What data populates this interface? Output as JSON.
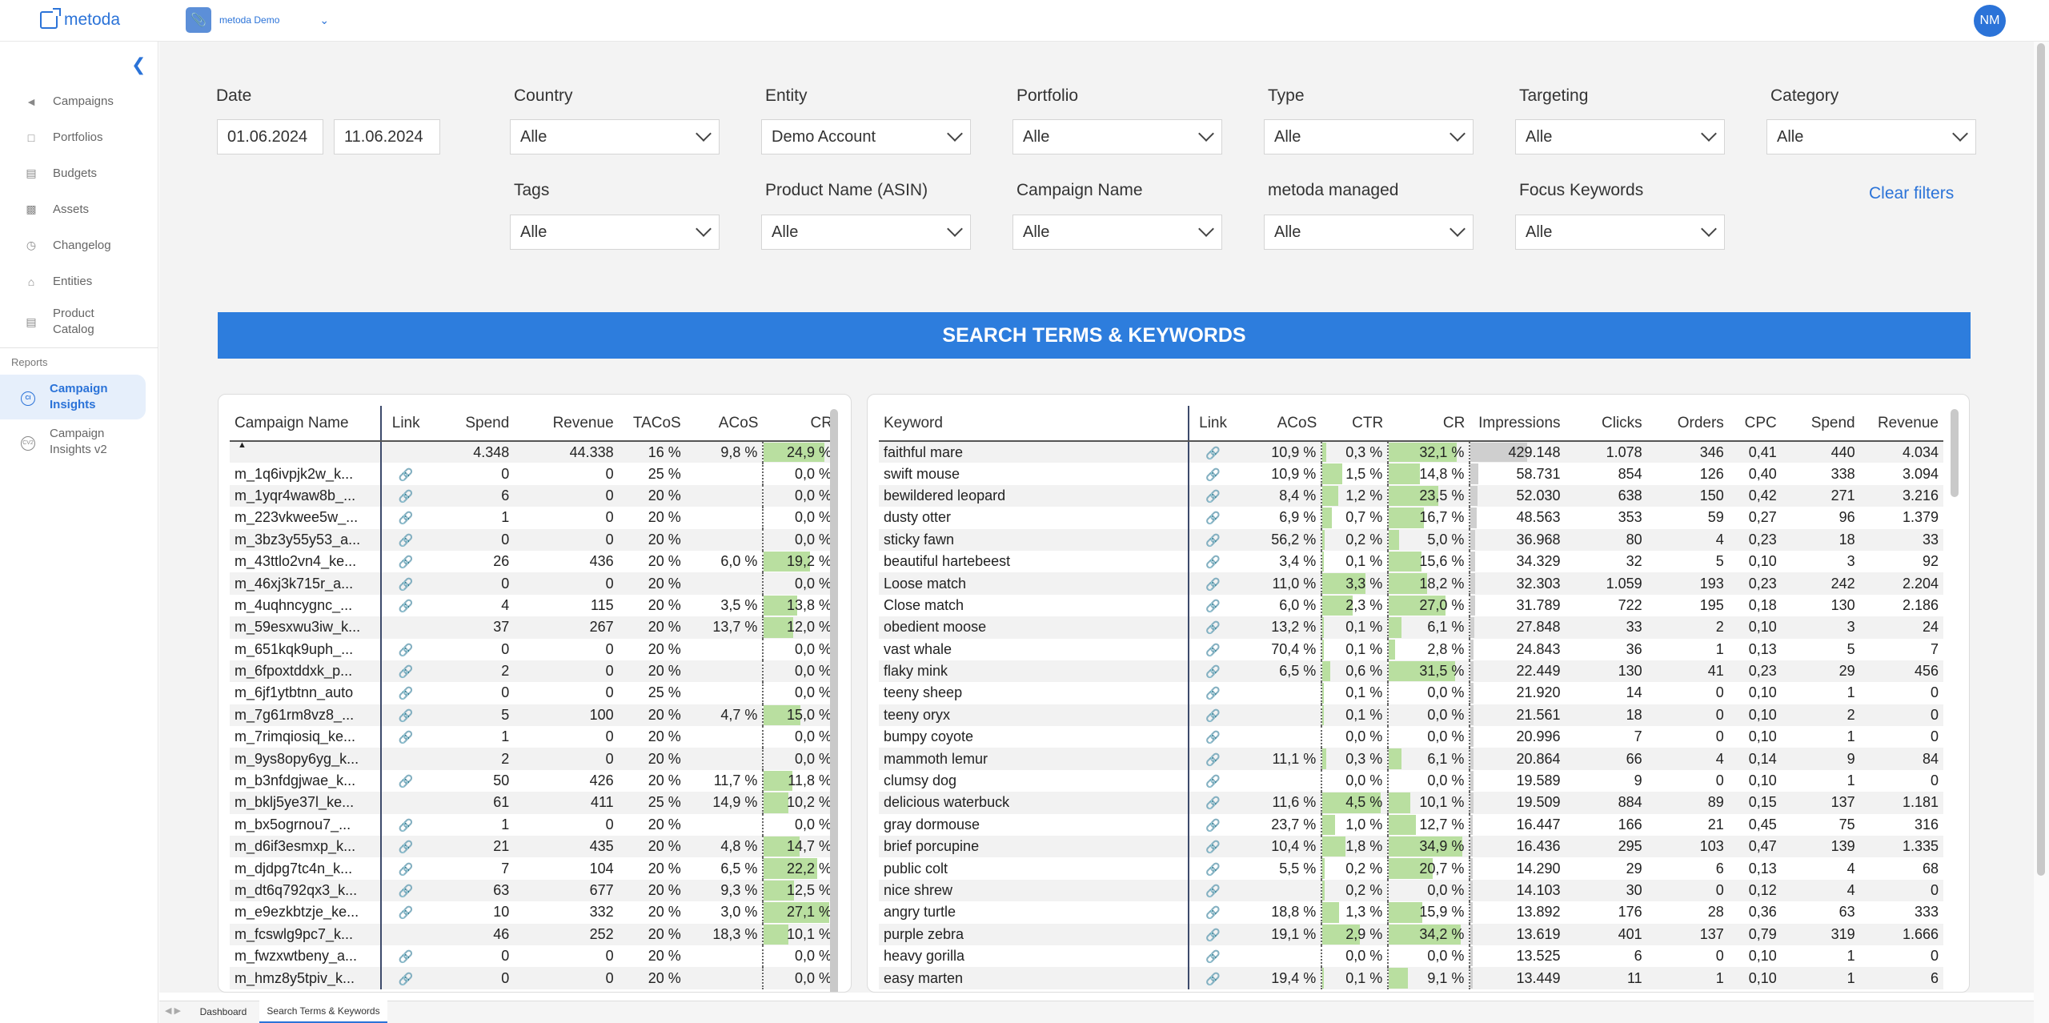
{
  "app": {
    "logo_text": "metoda",
    "account_name": "metoda Demo",
    "avatar_initials": "NM",
    "accent": "#2b73d8"
  },
  "sidebar": {
    "items": [
      {
        "label": "Campaigns",
        "icon": "megaphone-icon"
      },
      {
        "label": "Portfolios",
        "icon": "folder-icon"
      },
      {
        "label": "Budgets",
        "icon": "wallet-icon"
      },
      {
        "label": "Assets",
        "icon": "image-icon"
      },
      {
        "label": "Changelog",
        "icon": "clock-icon"
      },
      {
        "label": "Entities",
        "icon": "bank-icon"
      },
      {
        "label": "Product Catalog",
        "icon": "book-icon"
      }
    ],
    "section": "Reports",
    "reports": [
      {
        "label": "Campaign Insights",
        "icon": "ci-circle-icon",
        "active": true
      },
      {
        "label": "Campaign Insights v2",
        "icon": "cv2-circle-icon",
        "active": false
      }
    ]
  },
  "filters": {
    "date_label": "Date",
    "date_from": "01.06.2024",
    "date_to": "11.06.2024",
    "country": {
      "label": "Country",
      "value": "Alle"
    },
    "entity": {
      "label": "Entity",
      "value": "Demo Account"
    },
    "portfolio": {
      "label": "Portfolio",
      "value": "Alle"
    },
    "type": {
      "label": "Type",
      "value": "Alle"
    },
    "targeting": {
      "label": "Targeting",
      "value": "Alle"
    },
    "category": {
      "label": "Category",
      "value": "Alle"
    },
    "tags": {
      "label": "Tags",
      "value": "Alle"
    },
    "product_name": {
      "label": "Product Name (ASIN)",
      "value": "Alle"
    },
    "campaign_name": {
      "label": "Campaign Name",
      "value": "Alle"
    },
    "metoda_managed": {
      "label": "metoda managed",
      "value": "Alle"
    },
    "focus_keywords": {
      "label": "Focus Keywords",
      "value": "Alle"
    },
    "clear_label": "Clear filters"
  },
  "banner_title": "SEARCH TERMS & KEYWORDS",
  "campaign_table": {
    "columns": [
      "Campaign Name",
      "Link",
      "Spend",
      "Revenue",
      "TACoS",
      "ACoS",
      "CR"
    ],
    "total": {
      "name": "",
      "spend": "4.348",
      "revenue": "44.338",
      "tacos": "16 %",
      "acos": "9,8 %",
      "cr": "24,9 %",
      "cr_val": 24.9
    },
    "rows": [
      {
        "name": "m_1q6ivpjk2w_k...",
        "link": true,
        "spend": "0",
        "revenue": "0",
        "tacos": "25 %",
        "acos": "",
        "cr": "0,0 %",
        "cr_val": 0
      },
      {
        "name": "m_1yqr4waw8b_...",
        "link": true,
        "spend": "6",
        "revenue": "0",
        "tacos": "20 %",
        "acos": "",
        "cr": "0,0 %",
        "cr_val": 0
      },
      {
        "name": "m_223vkwee5w_...",
        "link": true,
        "spend": "1",
        "revenue": "0",
        "tacos": "20 %",
        "acos": "",
        "cr": "0,0 %",
        "cr_val": 0
      },
      {
        "name": "m_3bz3y55y53_a...",
        "link": true,
        "spend": "0",
        "revenue": "0",
        "tacos": "20 %",
        "acos": "",
        "cr": "0,0 %",
        "cr_val": 0
      },
      {
        "name": "m_43ttlo2vn4_ke...",
        "link": true,
        "spend": "26",
        "revenue": "436",
        "tacos": "20 %",
        "acos": "6,0 %",
        "cr": "19,2 %",
        "cr_val": 19.2
      },
      {
        "name": "m_46xj3k715r_a...",
        "link": true,
        "spend": "0",
        "revenue": "0",
        "tacos": "20 %",
        "acos": "",
        "cr": "0,0 %",
        "cr_val": 0
      },
      {
        "name": "m_4uqhncygnc_...",
        "link": true,
        "spend": "4",
        "revenue": "115",
        "tacos": "20 %",
        "acos": "3,5 %",
        "cr": "13,8 %",
        "cr_val": 13.8
      },
      {
        "name": "m_59esxwu3iw_k...",
        "link": false,
        "spend": "37",
        "revenue": "267",
        "tacos": "20 %",
        "acos": "13,7 %",
        "cr": "12,0 %",
        "cr_val": 12.0
      },
      {
        "name": "m_651kqk9uph_...",
        "link": true,
        "spend": "0",
        "revenue": "0",
        "tacos": "20 %",
        "acos": "",
        "cr": "0,0 %",
        "cr_val": 0
      },
      {
        "name": "m_6fpoxtddxk_p...",
        "link": true,
        "spend": "2",
        "revenue": "0",
        "tacos": "20 %",
        "acos": "",
        "cr": "0,0 %",
        "cr_val": 0
      },
      {
        "name": "m_6jf1ytbtnn_auto",
        "link": true,
        "spend": "0",
        "revenue": "0",
        "tacos": "25 %",
        "acos": "",
        "cr": "0,0 %",
        "cr_val": 0
      },
      {
        "name": "m_7g61rm8vz8_...",
        "link": true,
        "spend": "5",
        "revenue": "100",
        "tacos": "20 %",
        "acos": "4,7 %",
        "cr": "15,0 %",
        "cr_val": 15.0
      },
      {
        "name": "m_7rimqiosiq_ke...",
        "link": true,
        "spend": "1",
        "revenue": "0",
        "tacos": "20 %",
        "acos": "",
        "cr": "0,0 %",
        "cr_val": 0
      },
      {
        "name": "m_9ys8opy6yg_k...",
        "link": false,
        "spend": "2",
        "revenue": "0",
        "tacos": "20 %",
        "acos": "",
        "cr": "0,0 %",
        "cr_val": 0
      },
      {
        "name": "m_b3nfdgjwae_k...",
        "link": true,
        "spend": "50",
        "revenue": "426",
        "tacos": "20 %",
        "acos": "11,7 %",
        "cr": "11,8 %",
        "cr_val": 11.8
      },
      {
        "name": "m_bklj5ye37l_ke...",
        "link": false,
        "spend": "61",
        "revenue": "411",
        "tacos": "25 %",
        "acos": "14,9 %",
        "cr": "10,2 %",
        "cr_val": 10.2
      },
      {
        "name": "m_bx5ogrnou7_...",
        "link": true,
        "spend": "1",
        "revenue": "0",
        "tacos": "20 %",
        "acos": "",
        "cr": "0,0 %",
        "cr_val": 0
      },
      {
        "name": "m_d6if3esmxp_k...",
        "link": true,
        "spend": "21",
        "revenue": "435",
        "tacos": "20 %",
        "acos": "4,8 %",
        "cr": "14,7 %",
        "cr_val": 14.7
      },
      {
        "name": "m_djdpg7tc4n_k...",
        "link": true,
        "spend": "7",
        "revenue": "104",
        "tacos": "20 %",
        "acos": "6,5 %",
        "cr": "22,2 %",
        "cr_val": 22.2
      },
      {
        "name": "m_dt6q792qx3_k...",
        "link": true,
        "spend": "63",
        "revenue": "677",
        "tacos": "20 %",
        "acos": "9,3 %",
        "cr": "12,5 %",
        "cr_val": 12.5
      },
      {
        "name": "m_e9ezkbtzje_ke...",
        "link": true,
        "spend": "10",
        "revenue": "332",
        "tacos": "20 %",
        "acos": "3,0 %",
        "cr": "27,1 %",
        "cr_val": 27.1
      },
      {
        "name": "m_fcswlg9pc7_k...",
        "link": false,
        "spend": "46",
        "revenue": "252",
        "tacos": "20 %",
        "acos": "18,3 %",
        "cr": "10,1 %",
        "cr_val": 10.1
      },
      {
        "name": "m_fwzxwtbeny_a...",
        "link": true,
        "spend": "0",
        "revenue": "0",
        "tacos": "20 %",
        "acos": "",
        "cr": "0,0 %",
        "cr_val": 0
      },
      {
        "name": "m_hmz8y5tpiv_k...",
        "link": true,
        "spend": "0",
        "revenue": "0",
        "tacos": "20 %",
        "acos": "",
        "cr": "0,0 %",
        "cr_val": 0
      }
    ]
  },
  "keyword_table": {
    "columns": [
      "Keyword",
      "Link",
      "ACoS",
      "CTR",
      "CR",
      "Impressions",
      "Clicks",
      "Orders",
      "CPC",
      "Spend",
      "Revenue"
    ],
    "max_impressions": 429148,
    "rows": [
      {
        "keyword": "faithful mare",
        "acos": "10,9 %",
        "ctr": "0,3 %",
        "ctr_val": 0.3,
        "cr": "32,1 %",
        "cr_val": 32.1,
        "impr": "429.148",
        "impr_val": 429148,
        "clicks": "1.078",
        "orders": "346",
        "cpc": "0,41",
        "spend": "440",
        "revenue": "4.034"
      },
      {
        "keyword": "swift mouse",
        "acos": "10,9 %",
        "ctr": "1,5 %",
        "ctr_val": 1.5,
        "cr": "14,8 %",
        "cr_val": 14.8,
        "impr": "58.731",
        "impr_val": 58731,
        "clicks": "854",
        "orders": "126",
        "cpc": "0,40",
        "spend": "338",
        "revenue": "3.094"
      },
      {
        "keyword": "bewildered leopard",
        "acos": "8,4 %",
        "ctr": "1,2 %",
        "ctr_val": 1.2,
        "cr": "23,5 %",
        "cr_val": 23.5,
        "impr": "52.030",
        "impr_val": 52030,
        "clicks": "638",
        "orders": "150",
        "cpc": "0,42",
        "spend": "271",
        "revenue": "3.216"
      },
      {
        "keyword": "dusty otter",
        "acos": "6,9 %",
        "ctr": "0,7 %",
        "ctr_val": 0.7,
        "cr": "16,7 %",
        "cr_val": 16.7,
        "impr": "48.563",
        "impr_val": 48563,
        "clicks": "353",
        "orders": "59",
        "cpc": "0,27",
        "spend": "96",
        "revenue": "1.379"
      },
      {
        "keyword": "sticky fawn",
        "acos": "56,2 %",
        "ctr": "0,2 %",
        "ctr_val": 0.2,
        "cr": "5,0 %",
        "cr_val": 5.0,
        "impr": "36.968",
        "impr_val": 36968,
        "clicks": "80",
        "orders": "4",
        "cpc": "0,23",
        "spend": "18",
        "revenue": "33"
      },
      {
        "keyword": "beautiful hartebeest",
        "acos": "3,4 %",
        "ctr": "0,1 %",
        "ctr_val": 0.1,
        "cr": "15,6 %",
        "cr_val": 15.6,
        "impr": "34.329",
        "impr_val": 34329,
        "clicks": "32",
        "orders": "5",
        "cpc": "0,10",
        "spend": "3",
        "revenue": "92"
      },
      {
        "keyword": "Loose match",
        "acos": "11,0 %",
        "ctr": "3,3 %",
        "ctr_val": 3.3,
        "cr": "18,2 %",
        "cr_val": 18.2,
        "impr": "32.303",
        "impr_val": 32303,
        "clicks": "1.059",
        "orders": "193",
        "cpc": "0,23",
        "spend": "242",
        "revenue": "2.204"
      },
      {
        "keyword": "Close match",
        "acos": "6,0 %",
        "ctr": "2,3 %",
        "ctr_val": 2.3,
        "cr": "27,0 %",
        "cr_val": 27.0,
        "impr": "31.789",
        "impr_val": 31789,
        "clicks": "722",
        "orders": "195",
        "cpc": "0,18",
        "spend": "130",
        "revenue": "2.186"
      },
      {
        "keyword": "obedient moose",
        "acos": "13,2 %",
        "ctr": "0,1 %",
        "ctr_val": 0.1,
        "cr": "6,1 %",
        "cr_val": 6.1,
        "impr": "27.848",
        "impr_val": 27848,
        "clicks": "33",
        "orders": "2",
        "cpc": "0,10",
        "spend": "3",
        "revenue": "24"
      },
      {
        "keyword": "vast whale",
        "acos": "70,4 %",
        "ctr": "0,1 %",
        "ctr_val": 0.1,
        "cr": "2,8 %",
        "cr_val": 2.8,
        "impr": "24.843",
        "impr_val": 24843,
        "clicks": "36",
        "orders": "1",
        "cpc": "0,13",
        "spend": "5",
        "revenue": "7"
      },
      {
        "keyword": "flaky mink",
        "acos": "6,5 %",
        "ctr": "0,6 %",
        "ctr_val": 0.6,
        "cr": "31,5 %",
        "cr_val": 31.5,
        "impr": "22.449",
        "impr_val": 22449,
        "clicks": "130",
        "orders": "41",
        "cpc": "0,23",
        "spend": "29",
        "revenue": "456"
      },
      {
        "keyword": "teeny sheep",
        "acos": "",
        "ctr": "0,1 %",
        "ctr_val": 0.1,
        "cr": "0,0 %",
        "cr_val": 0,
        "impr": "21.920",
        "impr_val": 21920,
        "clicks": "14",
        "orders": "0",
        "cpc": "0,10",
        "spend": "1",
        "revenue": "0"
      },
      {
        "keyword": "teeny oryx",
        "acos": "",
        "ctr": "0,1 %",
        "ctr_val": 0.1,
        "cr": "0,0 %",
        "cr_val": 0,
        "impr": "21.561",
        "impr_val": 21561,
        "clicks": "18",
        "orders": "0",
        "cpc": "0,10",
        "spend": "2",
        "revenue": "0"
      },
      {
        "keyword": "bumpy coyote",
        "acos": "",
        "ctr": "0,0 %",
        "ctr_val": 0,
        "cr": "0,0 %",
        "cr_val": 0,
        "impr": "20.996",
        "impr_val": 20996,
        "clicks": "7",
        "orders": "0",
        "cpc": "0,10",
        "spend": "1",
        "revenue": "0"
      },
      {
        "keyword": "mammoth lemur",
        "acos": "11,1 %",
        "ctr": "0,3 %",
        "ctr_val": 0.3,
        "cr": "6,1 %",
        "cr_val": 6.1,
        "impr": "20.864",
        "impr_val": 20864,
        "clicks": "66",
        "orders": "4",
        "cpc": "0,14",
        "spend": "9",
        "revenue": "84"
      },
      {
        "keyword": "clumsy dog",
        "acos": "",
        "ctr": "0,0 %",
        "ctr_val": 0,
        "cr": "0,0 %",
        "cr_val": 0,
        "impr": "19.589",
        "impr_val": 19589,
        "clicks": "9",
        "orders": "0",
        "cpc": "0,10",
        "spend": "1",
        "revenue": "0"
      },
      {
        "keyword": "delicious waterbuck",
        "acos": "11,6 %",
        "ctr": "4,5 %",
        "ctr_val": 4.5,
        "cr": "10,1 %",
        "cr_val": 10.1,
        "impr": "19.509",
        "impr_val": 19509,
        "clicks": "884",
        "orders": "89",
        "cpc": "0,15",
        "spend": "137",
        "revenue": "1.181"
      },
      {
        "keyword": "gray dormouse",
        "acos": "23,7 %",
        "ctr": "1,0 %",
        "ctr_val": 1.0,
        "cr": "12,7 %",
        "cr_val": 12.7,
        "impr": "16.447",
        "impr_val": 16447,
        "clicks": "166",
        "orders": "21",
        "cpc": "0,45",
        "spend": "75",
        "revenue": "316"
      },
      {
        "keyword": "brief porcupine",
        "acos": "10,4 %",
        "ctr": "1,8 %",
        "ctr_val": 1.8,
        "cr": "34,9 %",
        "cr_val": 34.9,
        "impr": "16.436",
        "impr_val": 16436,
        "clicks": "295",
        "orders": "103",
        "cpc": "0,47",
        "spend": "139",
        "revenue": "1.335"
      },
      {
        "keyword": "public colt",
        "acos": "5,5 %",
        "ctr": "0,2 %",
        "ctr_val": 0.2,
        "cr": "20,7 %",
        "cr_val": 20.7,
        "impr": "14.290",
        "impr_val": 14290,
        "clicks": "29",
        "orders": "6",
        "cpc": "0,13",
        "spend": "4",
        "revenue": "68"
      },
      {
        "keyword": "nice shrew",
        "acos": "",
        "ctr": "0,2 %",
        "ctr_val": 0.2,
        "cr": "0,0 %",
        "cr_val": 0,
        "impr": "14.103",
        "impr_val": 14103,
        "clicks": "30",
        "orders": "0",
        "cpc": "0,12",
        "spend": "4",
        "revenue": "0"
      },
      {
        "keyword": "angry turtle",
        "acos": "18,8 %",
        "ctr": "1,3 %",
        "ctr_val": 1.3,
        "cr": "15,9 %",
        "cr_val": 15.9,
        "impr": "13.892",
        "impr_val": 13892,
        "clicks": "176",
        "orders": "28",
        "cpc": "0,36",
        "spend": "63",
        "revenue": "333"
      },
      {
        "keyword": "purple zebra",
        "acos": "19,1 %",
        "ctr": "2,9 %",
        "ctr_val": 2.9,
        "cr": "34,2 %",
        "cr_val": 34.2,
        "impr": "13.619",
        "impr_val": 13619,
        "clicks": "401",
        "orders": "137",
        "cpc": "0,79",
        "spend": "319",
        "revenue": "1.666"
      },
      {
        "keyword": "heavy gorilla",
        "acos": "",
        "ctr": "0,0 %",
        "ctr_val": 0,
        "cr": "0,0 %",
        "cr_val": 0,
        "impr": "13.525",
        "impr_val": 13525,
        "clicks": "6",
        "orders": "0",
        "cpc": "0,10",
        "spend": "1",
        "revenue": "0"
      },
      {
        "keyword": "easy marten",
        "acos": "19,4 %",
        "ctr": "0,1 %",
        "ctr_val": 0.1,
        "cr": "9,1 %",
        "cr_val": 9.1,
        "impr": "13.449",
        "impr_val": 13449,
        "clicks": "11",
        "orders": "1",
        "cpc": "0,10",
        "spend": "1",
        "revenue": "6"
      }
    ]
  },
  "bottom_tabs": [
    {
      "label": "Dashboard",
      "active": false
    },
    {
      "label": "Search Terms & Keywords",
      "active": true
    }
  ],
  "colors": {
    "bar_green": "#b9dfa0",
    "bar_gray": "#cfcfcf",
    "banner_blue": "#2d7ddd"
  }
}
